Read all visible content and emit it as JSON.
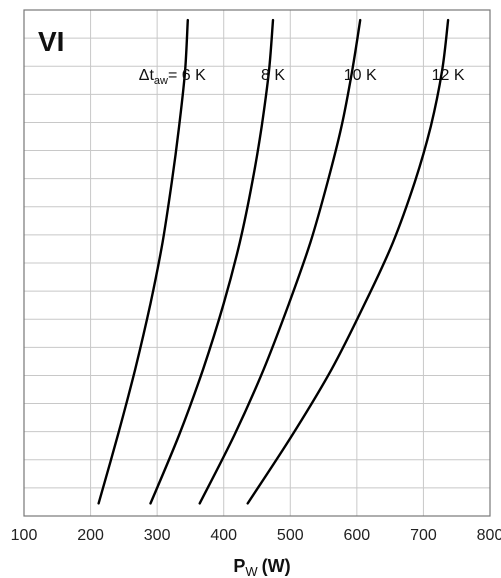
{
  "chart_data": {
    "type": "line",
    "panel_label": "VI",
    "xlabel": {
      "main": "P",
      "sub": "W",
      "unit": "(W)"
    },
    "ylabel": "",
    "xlim": [
      100,
      800
    ],
    "ylim": [
      0,
      1
    ],
    "x_ticks": [
      "100",
      "200",
      "300",
      "400",
      "500",
      "600",
      "700",
      "800"
    ],
    "y_tick_labels": [],
    "grid": true,
    "series": [
      {
        "name": "6 K",
        "label_prefix": "Δt",
        "label_sub": "aw",
        "label_eq": "=",
        "label_value": "6 K",
        "x": [
          212,
          241,
          267,
          290,
          308,
          322,
          333,
          342,
          346
        ],
        "y": [
          0.025,
          0.16,
          0.29,
          0.42,
          0.54,
          0.66,
          0.77,
          0.88,
          0.98
        ]
      },
      {
        "name": "8 K",
        "label_prefix": "",
        "label_sub": "",
        "label_eq": "",
        "label_value": "8 K",
        "x": [
          290,
          333,
          369,
          400,
          424,
          443,
          457,
          468,
          474
        ],
        "y": [
          0.025,
          0.16,
          0.29,
          0.42,
          0.54,
          0.66,
          0.77,
          0.88,
          0.98
        ]
      },
      {
        "name": "10 K",
        "label_prefix": "",
        "label_sub": "",
        "label_eq": "",
        "label_value": "10 K",
        "x": [
          364,
          416,
          460,
          498,
          530,
          556,
          577,
          593,
          605
        ],
        "y": [
          0.025,
          0.16,
          0.29,
          0.42,
          0.54,
          0.66,
          0.77,
          0.88,
          0.98
        ]
      },
      {
        "name": "12 K",
        "label_prefix": "",
        "label_sub": "",
        "label_eq": "",
        "label_value": "12 K",
        "x": [
          436,
          503,
          562,
          612,
          654,
          687,
          711,
          728,
          737
        ],
        "y": [
          0.025,
          0.16,
          0.29,
          0.42,
          0.54,
          0.66,
          0.77,
          0.88,
          0.98
        ]
      }
    ]
  }
}
